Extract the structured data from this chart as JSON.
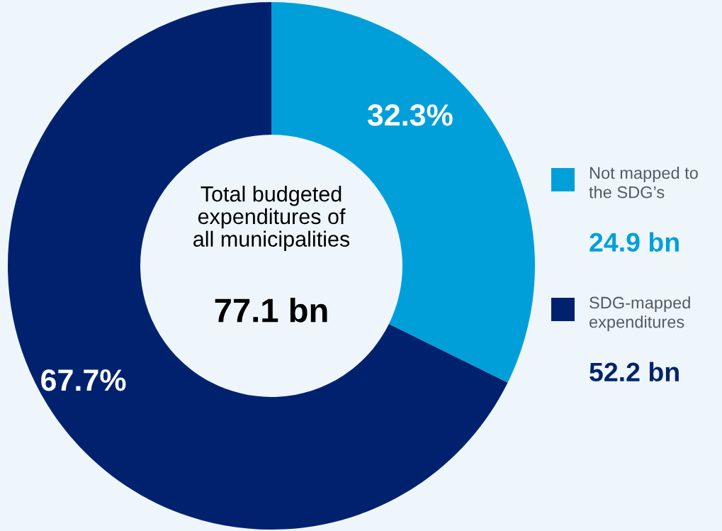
{
  "chart_data": {
    "type": "donut",
    "categories": [
      "Not mapped to\nthe SDG’s",
      "SDG-mapped\nexpenditures"
    ],
    "values": [
      32.3,
      67.7
    ],
    "colors": [
      "#009fda",
      "#00226e"
    ],
    "value_labels": [
      "32.3%",
      "67.7%"
    ],
    "legend": "right",
    "annotations": [
      "Total budgeted\nexpenditures of\nall municipalities",
      "77.1 bn",
      "24.9 bn",
      "52.2 bn"
    ]
  }
}
